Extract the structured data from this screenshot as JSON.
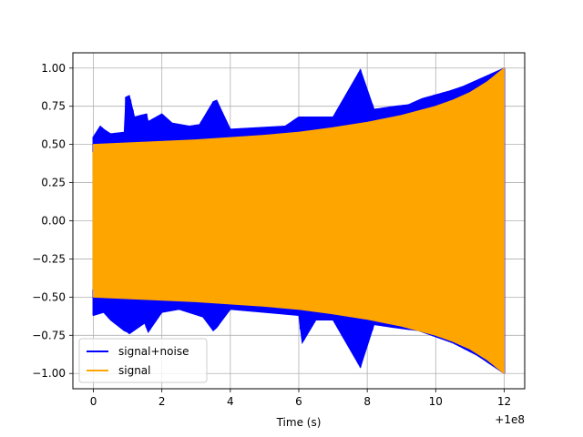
{
  "chart_data": {
    "type": "line",
    "title": "",
    "xlabel": "Time (s)",
    "ylabel": "",
    "x_offset_label": "+1e8",
    "xlim": [
      -0.6,
      12.6
    ],
    "ylim": [
      -1.1,
      1.1
    ],
    "x_ticks": [
      0,
      2,
      4,
      6,
      8,
      10,
      12
    ],
    "x_tick_labels": [
      "0",
      "2",
      "4",
      "6",
      "8",
      "10",
      "12"
    ],
    "y_ticks": [
      -1.0,
      -0.75,
      -0.5,
      -0.25,
      0.0,
      0.25,
      0.5,
      0.75,
      1.0
    ],
    "y_tick_labels": [
      "−1.00",
      "−0.75",
      "−0.50",
      "−0.25",
      "0.00",
      "0.25",
      "0.50",
      "0.75",
      "1.00"
    ],
    "grid": true,
    "legend_location": "lower-left",
    "series": [
      {
        "name": "signal+noise",
        "color": "#0000ff",
        "upper_envelope": [
          [
            0.0,
            0.55
          ],
          [
            0.2,
            0.62
          ],
          [
            0.3,
            0.6
          ],
          [
            0.5,
            0.57
          ],
          [
            0.9,
            0.58
          ],
          [
            0.95,
            0.81
          ],
          [
            1.05,
            0.82
          ],
          [
            1.2,
            0.68
          ],
          [
            1.55,
            0.7
          ],
          [
            1.6,
            0.65
          ],
          [
            2.0,
            0.7
          ],
          [
            2.3,
            0.64
          ],
          [
            2.8,
            0.62
          ],
          [
            3.1,
            0.63
          ],
          [
            3.5,
            0.78
          ],
          [
            3.6,
            0.79
          ],
          [
            4.0,
            0.6
          ],
          [
            5.6,
            0.62
          ],
          [
            6.0,
            0.68
          ],
          [
            7.0,
            0.68
          ],
          [
            7.8,
            0.99
          ],
          [
            8.2,
            0.73
          ],
          [
            8.8,
            0.75
          ],
          [
            9.2,
            0.76
          ],
          [
            9.6,
            0.8
          ],
          [
            10.4,
            0.85
          ],
          [
            10.8,
            0.88
          ],
          [
            11.2,
            0.92
          ],
          [
            11.6,
            0.96
          ],
          [
            12.0,
            1.0
          ]
        ],
        "lower_envelope": [
          [
            0.0,
            -0.62
          ],
          [
            0.3,
            -0.6
          ],
          [
            0.5,
            -0.65
          ],
          [
            0.9,
            -0.72
          ],
          [
            1.0,
            -0.73
          ],
          [
            1.05,
            -0.74
          ],
          [
            1.5,
            -0.67
          ],
          [
            1.6,
            -0.73
          ],
          [
            2.0,
            -0.6
          ],
          [
            2.5,
            -0.58
          ],
          [
            3.2,
            -0.63
          ],
          [
            3.5,
            -0.72
          ],
          [
            3.6,
            -0.7
          ],
          [
            4.0,
            -0.58
          ],
          [
            6.0,
            -0.62
          ],
          [
            6.1,
            -0.8
          ],
          [
            6.5,
            -0.65
          ],
          [
            7.0,
            -0.65
          ],
          [
            7.8,
            -0.96
          ],
          [
            8.2,
            -0.68
          ],
          [
            8.8,
            -0.7
          ],
          [
            9.5,
            -0.72
          ],
          [
            10.5,
            -0.8
          ],
          [
            11.2,
            -0.88
          ],
          [
            11.6,
            -0.94
          ],
          [
            12.0,
            -1.0
          ]
        ],
        "noise_spikes_x": [
          0.0,
          0.25,
          0.45,
          0.95,
          1.02,
          1.08,
          1.15,
          1.55,
          1.65,
          2.05,
          2.45,
          2.85,
          3.15,
          3.5,
          3.62,
          4.5,
          5.6,
          6.05,
          6.15,
          7.0,
          7.75,
          7.8,
          8.15,
          8.5,
          9.2,
          10.6,
          11.5,
          12.0
        ]
      },
      {
        "name": "signal",
        "color": "#ffa500",
        "envelope": [
          [
            0.0,
            0.5
          ],
          [
            1.0,
            0.51
          ],
          [
            2.0,
            0.52
          ],
          [
            3.0,
            0.53
          ],
          [
            4.0,
            0.545
          ],
          [
            5.0,
            0.56
          ],
          [
            6.0,
            0.58
          ],
          [
            7.0,
            0.61
          ],
          [
            8.0,
            0.645
          ],
          [
            9.0,
            0.69
          ],
          [
            10.0,
            0.75
          ],
          [
            10.5,
            0.79
          ],
          [
            11.0,
            0.84
          ],
          [
            11.5,
            0.91
          ],
          [
            12.0,
            1.0
          ]
        ]
      }
    ]
  }
}
